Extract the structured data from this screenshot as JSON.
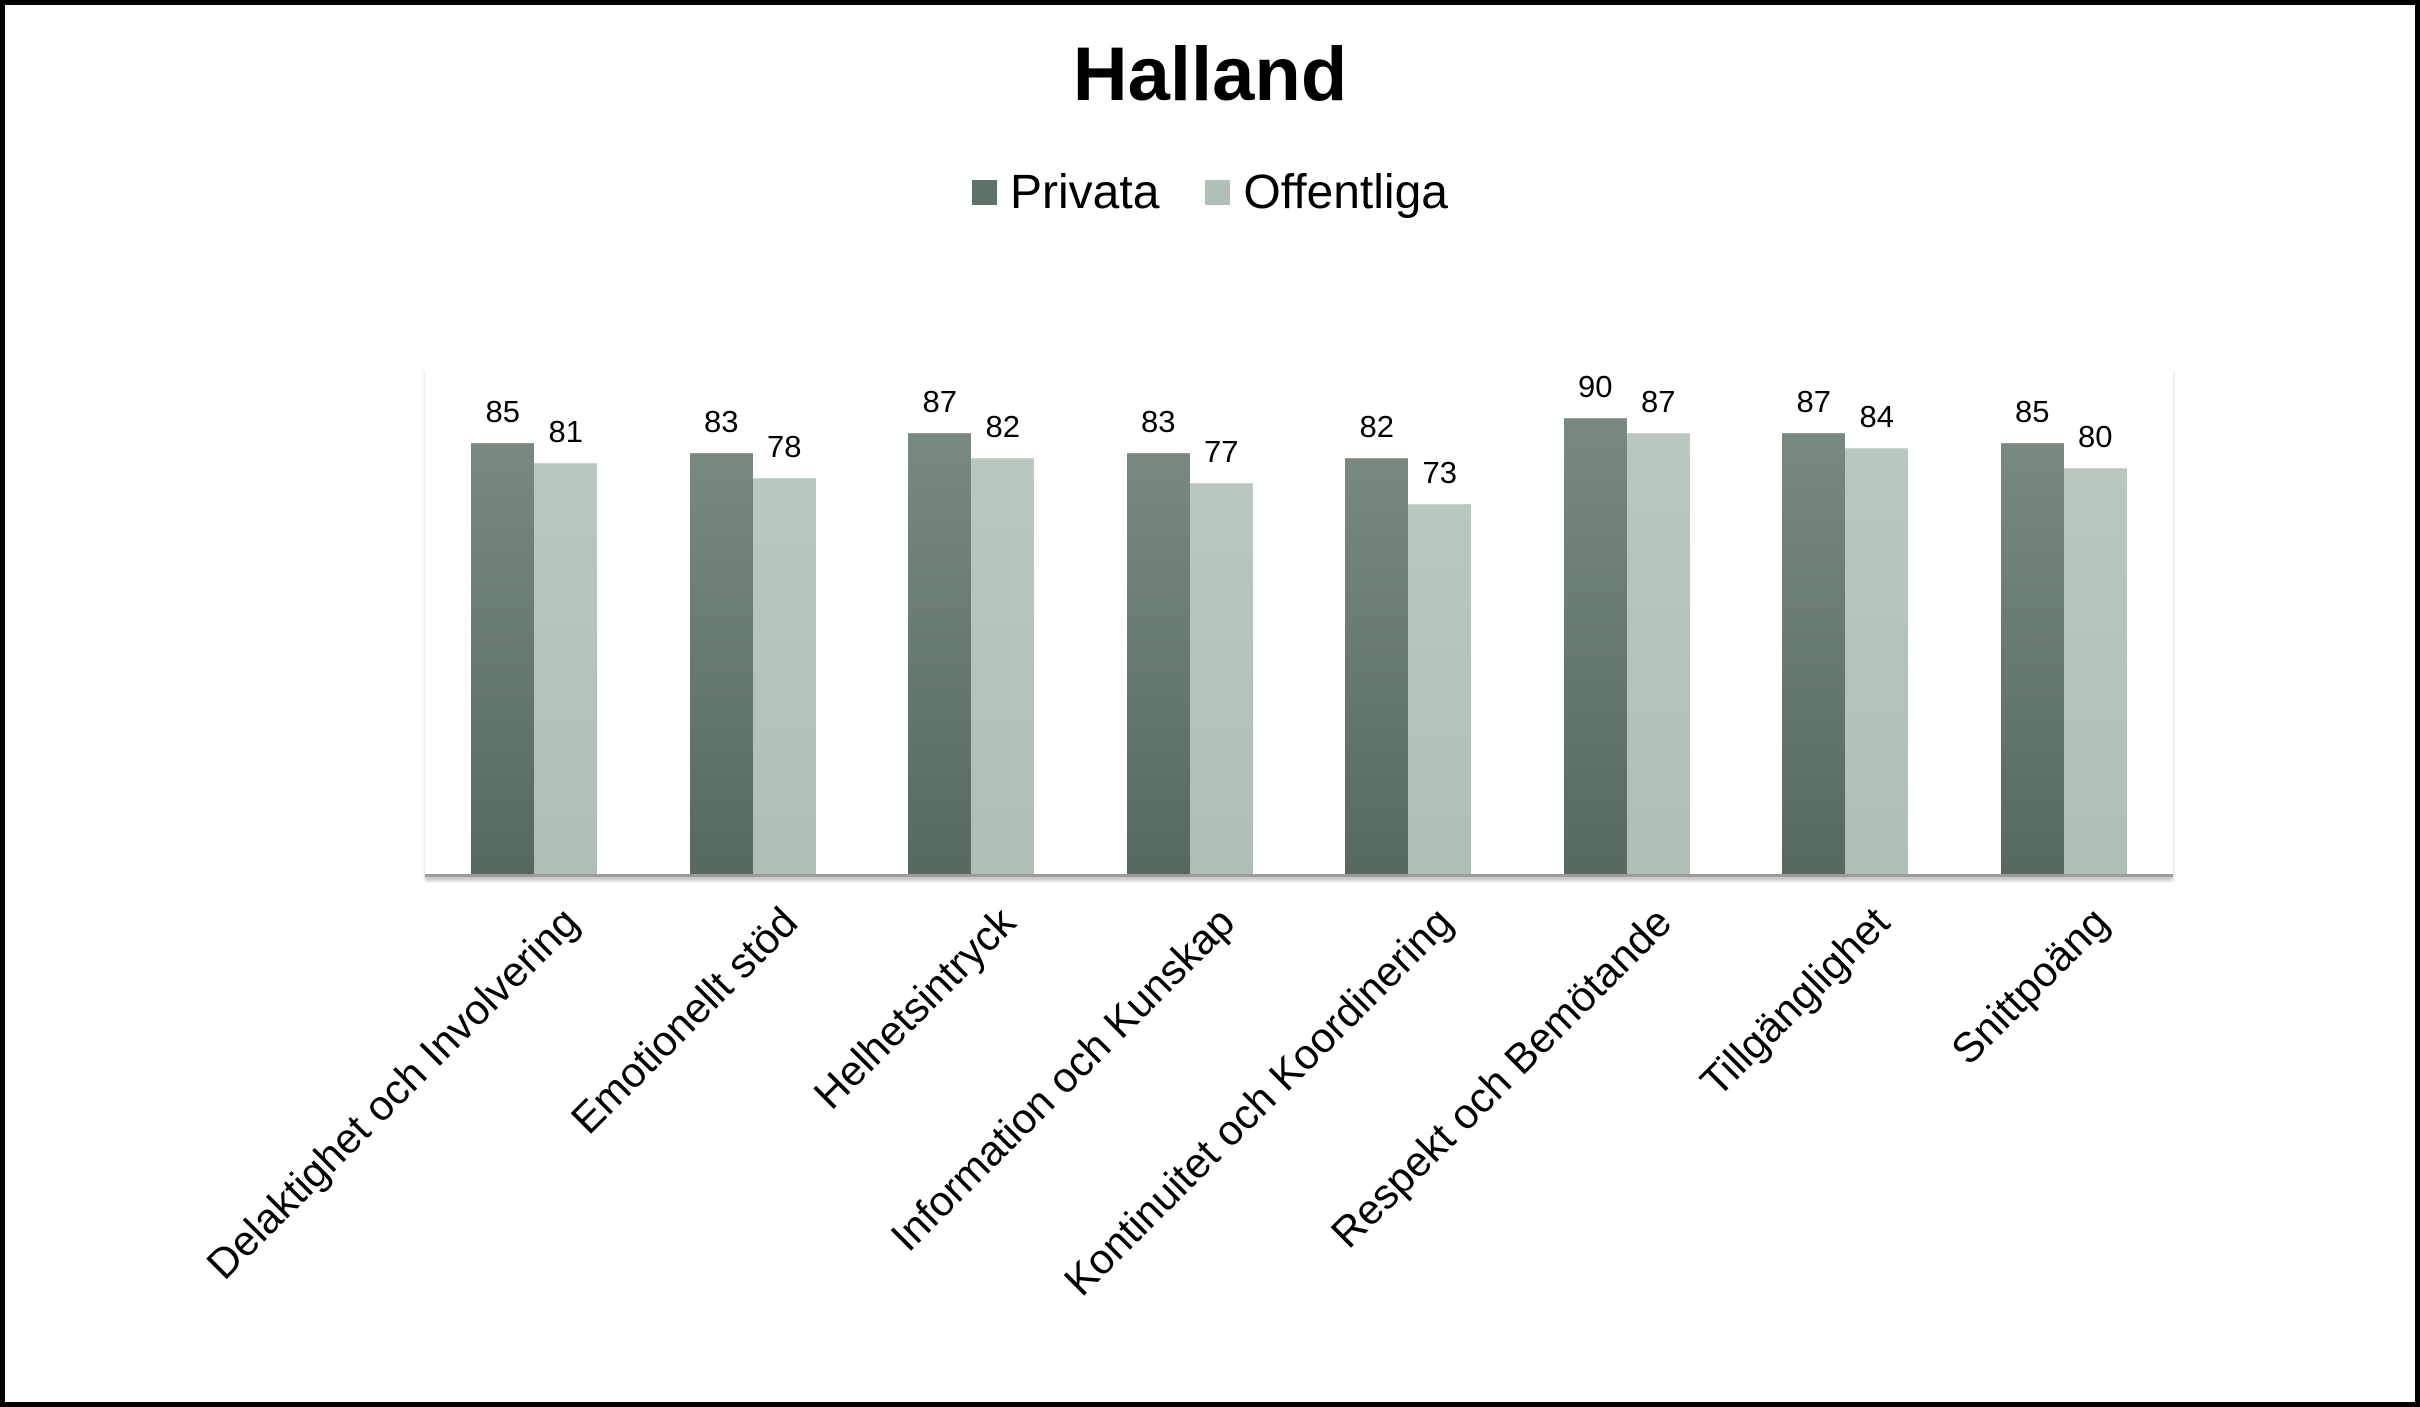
{
  "frame": {
    "background": "#ffffff",
    "border_color": "#000000"
  },
  "chart_data": {
    "type": "bar",
    "title": "Halland",
    "categories": [
      "Delaktighet och Involvering",
      "Emotionellt stöd",
      "Helhetsintryck",
      "Information och Kunskap",
      "Kontinuitet och Koordinering",
      "Respekt och Bemötande",
      "Tillgänglighet",
      "Snittpoäng"
    ],
    "series": [
      {
        "name": "Privata",
        "values": [
          85,
          83,
          87,
          83,
          82,
          90,
          87,
          85
        ],
        "color_top": "#79897f",
        "color_bottom": "#57695f",
        "legend_color": "#5f7267"
      },
      {
        "name": "Offentliga",
        "values": [
          81,
          78,
          82,
          77,
          73,
          87,
          84,
          80
        ],
        "color_top": "#b9c7bf",
        "color_bottom": "#b0bfb6",
        "legend_color": "#afc0b7"
      }
    ],
    "ylim": [
      0,
      100
    ],
    "data_labels": true,
    "grid": false,
    "legend_position": "top",
    "axis_line_color": "#9b9b9b",
    "category_label_rotation_deg": -45
  }
}
